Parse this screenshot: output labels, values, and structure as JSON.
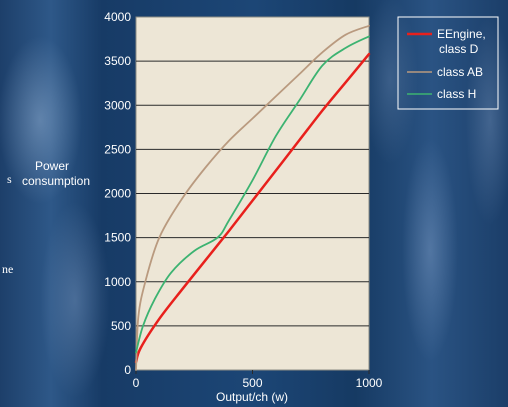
{
  "chart_data": {
    "type": "line",
    "title": "",
    "xlabel": "Output/ch (w)",
    "ylabel_lines": [
      "Power",
      "consumption"
    ],
    "xlim": [
      0,
      1000
    ],
    "ylim": [
      0,
      4000
    ],
    "x_ticks": [
      "0",
      "500",
      "1000"
    ],
    "y_ticks": [
      "0",
      "500",
      "1000",
      "1500",
      "2000",
      "2500",
      "3000",
      "3500",
      "4000"
    ],
    "grid": "horizontal",
    "legend_position": "right",
    "series": [
      {
        "name_lines": [
          "EEngine,",
          "class D"
        ],
        "color": "#e8201c",
        "x": [
          0,
          20,
          100,
          200,
          300,
          400,
          500,
          600,
          700,
          800,
          900,
          1000
        ],
        "y": [
          90,
          250,
          580,
          920,
          1250,
          1580,
          1920,
          2260,
          2600,
          2940,
          3260,
          3580
        ]
      },
      {
        "name_lines": [
          "class AB"
        ],
        "color": "#b99a7f",
        "x": [
          0,
          10,
          40,
          100,
          200,
          300,
          400,
          500,
          600,
          700,
          800,
          900,
          1000
        ],
        "y": [
          0,
          600,
          1000,
          1500,
          1950,
          2300,
          2600,
          2850,
          3100,
          3350,
          3600,
          3800,
          3900
        ]
      },
      {
        "name_lines": [
          "class H"
        ],
        "color": "#3cb371",
        "x": [
          0,
          30,
          80,
          150,
          250,
          350,
          400,
          500,
          600,
          700,
          800,
          900,
          1000
        ],
        "y": [
          200,
          500,
          800,
          1100,
          1350,
          1500,
          1700,
          2150,
          2650,
          3050,
          3450,
          3650,
          3780
        ]
      }
    ],
    "edge_text_fragments": [
      "s",
      "ne"
    ]
  }
}
